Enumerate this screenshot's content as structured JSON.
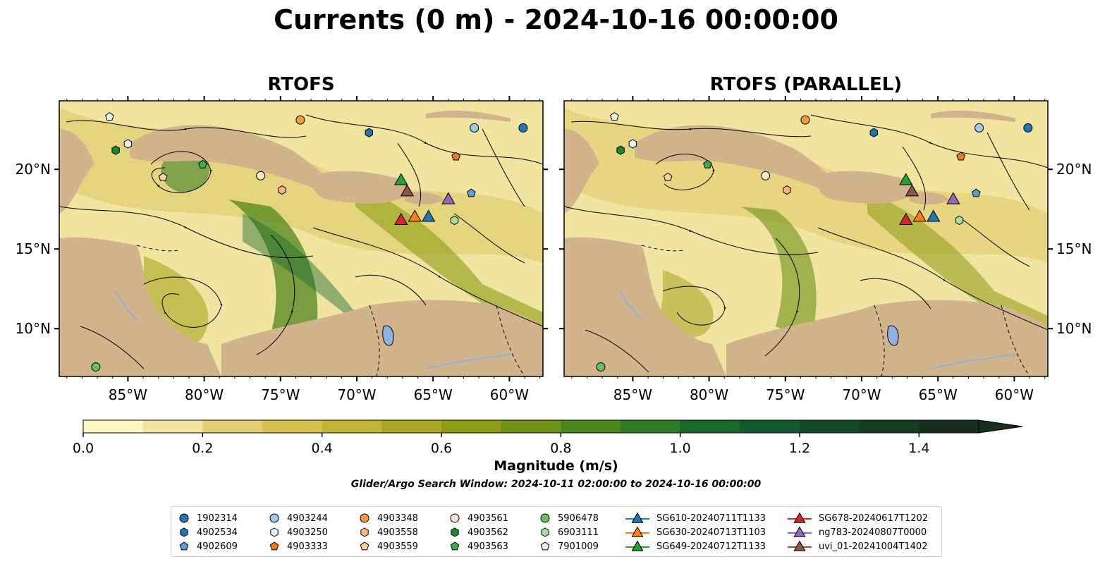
{
  "title": "Currents (0 m) - 2024-10-16 00:00:00",
  "panels": [
    {
      "title": "RTOFS"
    },
    {
      "title": "RTOFS (PARALLEL)"
    }
  ],
  "map": {
    "lon_range": [
      -89.5,
      -57.8
    ],
    "lat_range": [
      7.0,
      24.3
    ],
    "lon_ticks": [
      "85°W",
      "80°W",
      "75°W",
      "70°W",
      "65°W",
      "60°W"
    ],
    "lon_tick_values": [
      -85,
      -80,
      -75,
      -70,
      -65,
      -60
    ],
    "lat_ticks": [
      "10°N",
      "15°N",
      "20°N"
    ],
    "lat_tick_values": [
      10,
      15,
      20
    ],
    "land_color": "#d2b48c",
    "lake_color": "#8fb2e0",
    "grid": false
  },
  "colorbar": {
    "label": "Magnitude (m/s)",
    "ticks": [
      "0.0",
      "0.2",
      "0.4",
      "0.6",
      "0.8",
      "1.0",
      "1.2",
      "1.4"
    ],
    "tick_values": [
      0,
      0.2,
      0.4,
      0.6,
      0.8,
      1.0,
      1.2,
      1.4
    ],
    "range": [
      0,
      1.5
    ],
    "extend": "max",
    "colors": [
      "#fdf6c3",
      "#f1e3a0",
      "#e2cf75",
      "#d4c150",
      "#c2b535",
      "#a8a622",
      "#8c9c14",
      "#6e9216",
      "#4d861d",
      "#2f7a25",
      "#196a2c",
      "#125a2d",
      "#134a29",
      "#163d24",
      "#182f1e"
    ]
  },
  "search_window": "Glider/Argo Search Window: 2024-10-11 02:00:00 to 2024-10-16 00:00:00",
  "argo": [
    {
      "id": "1902314",
      "color": "#1f77b4",
      "marker": "circle",
      "lon": -59.1,
      "lat": 22.6
    },
    {
      "id": "4902534",
      "color": "#1f77b4",
      "marker": "hexagon",
      "lon": -69.2,
      "lat": 22.3
    },
    {
      "id": "4902609",
      "color": "#5f9ed1",
      "marker": "pentagon",
      "lon": -62.5,
      "lat": 18.5
    },
    {
      "id": "4903244",
      "color": "#9ecae9",
      "marker": "circle",
      "lon": -62.3,
      "lat": 22.6
    },
    {
      "id": "4903250",
      "color": "#e6f0fa",
      "marker": "hexagon",
      "lon": -85.0,
      "lat": 21.6
    },
    {
      "id": "4903333",
      "color": "#f4791b",
      "marker": "pentagon",
      "lon": -63.5,
      "lat": 20.8
    },
    {
      "id": "4903348",
      "color": "#f59a40",
      "marker": "circle",
      "lon": -73.7,
      "lat": 23.1
    },
    {
      "id": "4903558",
      "color": "#fcb678",
      "marker": "hexagon",
      "lon": -74.9,
      "lat": 18.7
    },
    {
      "id": "4903559",
      "color": "#fdd0a2",
      "marker": "pentagon",
      "lon": -82.7,
      "lat": 19.5
    },
    {
      "id": "4903561",
      "color": "#fde5d0",
      "marker": "circle",
      "lon": -76.3,
      "lat": 19.6
    },
    {
      "id": "4903562",
      "color": "#1b8a2e",
      "marker": "hexagon",
      "lon": -85.8,
      "lat": 21.2
    },
    {
      "id": "4903563",
      "color": "#3cae4a",
      "marker": "pentagon",
      "lon": -80.1,
      "lat": 20.3
    },
    {
      "id": "5906478",
      "color": "#62c262",
      "marker": "circle",
      "lon": -87.1,
      "lat": 7.6
    },
    {
      "id": "6903111",
      "color": "#a6e0a0",
      "marker": "hexagon",
      "lon": -63.6,
      "lat": 16.8
    },
    {
      "id": "7901009",
      "color": "#e6f7e2",
      "marker": "pentagon",
      "lon": -86.2,
      "lat": 23.3
    }
  ],
  "gliders": [
    {
      "id": "SG610-20240711T1133",
      "color": "#1f77b4",
      "lon": -65.3,
      "lat": 17.0
    },
    {
      "id": "SG630-20240713T1103",
      "color": "#ff7f0e",
      "lon": -66.2,
      "lat": 17.0
    },
    {
      "id": "SG649-20240712T1133",
      "color": "#2ca02c",
      "lon": -67.1,
      "lat": 19.3
    },
    {
      "id": "SG678-20240617T1202",
      "color": "#d62728",
      "lon": -67.1,
      "lat": 16.8
    },
    {
      "id": "ng783-20240807T0000",
      "color": "#9467bd",
      "lon": -64.0,
      "lat": 18.1
    },
    {
      "id": "uvi_01-20241004T1402",
      "color": "#8c564b",
      "lon": -66.7,
      "lat": 18.6
    }
  ]
}
